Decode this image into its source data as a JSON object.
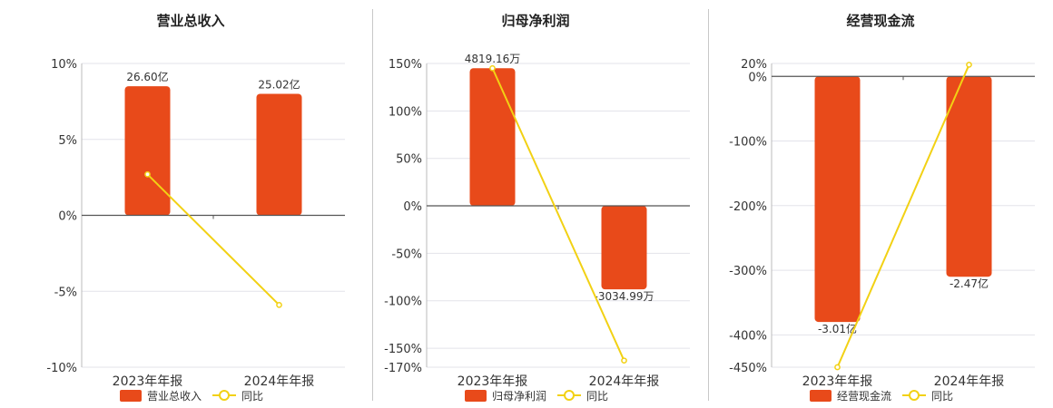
{
  "colors": {
    "bar": "#e84a1a",
    "line": "#f2d114",
    "grid": "#e3e3ea",
    "axis": "#555555"
  },
  "legend": {
    "yoy_label": "同比"
  },
  "chart_data": [
    {
      "type": "bar",
      "title": "营业总收入",
      "categories": [
        "2023年年报",
        "2024年年报"
      ],
      "series": [
        {
          "name": "营业总收入",
          "values": [
            8.5,
            8.0
          ]
        }
      ],
      "line_series": {
        "name": "同比",
        "values": [
          2.7,
          -5.9
        ]
      },
      "bar_labels": [
        "26.60亿",
        "25.02亿"
      ],
      "ylim": [
        -10,
        10
      ],
      "yticks": [
        10,
        5,
        0,
        -5,
        -10
      ],
      "ytick_labels": [
        "10%",
        "5%",
        "0%",
        "-5%",
        "-10%"
      ]
    },
    {
      "type": "bar",
      "title": "归母净利润",
      "categories": [
        "2023年年报",
        "2024年年报"
      ],
      "series": [
        {
          "name": "归母净利润",
          "values": [
            145,
            -88
          ]
        }
      ],
      "line_series": {
        "name": "同比",
        "values": [
          145,
          -163
        ]
      },
      "bar_labels": [
        "4819.16万",
        "-3034.99万"
      ],
      "ylim": [
        -170,
        150
      ],
      "yticks": [
        150,
        100,
        50,
        0,
        -50,
        -100,
        -150,
        -170
      ],
      "ytick_labels": [
        "150%",
        "100%",
        "50%",
        "0%",
        "-50%",
        "-100%",
        "-150%",
        "-170%"
      ]
    },
    {
      "type": "bar",
      "title": "经营现金流",
      "categories": [
        "2023年年报",
        "2024年年报"
      ],
      "series": [
        {
          "name": "经营现金流",
          "values": [
            -380,
            -310
          ]
        }
      ],
      "line_series": {
        "name": "同比",
        "values": [
          -450,
          18
        ]
      },
      "bar_labels": [
        "-3.01亿",
        "-2.47亿"
      ],
      "ylim": [
        -450,
        20
      ],
      "yticks": [
        20,
        0,
        -100,
        -200,
        -300,
        -400,
        -450
      ],
      "ytick_labels": [
        "20%",
        "0%",
        "-100%",
        "-200%",
        "-300%",
        "-400%",
        "-450%"
      ]
    }
  ]
}
